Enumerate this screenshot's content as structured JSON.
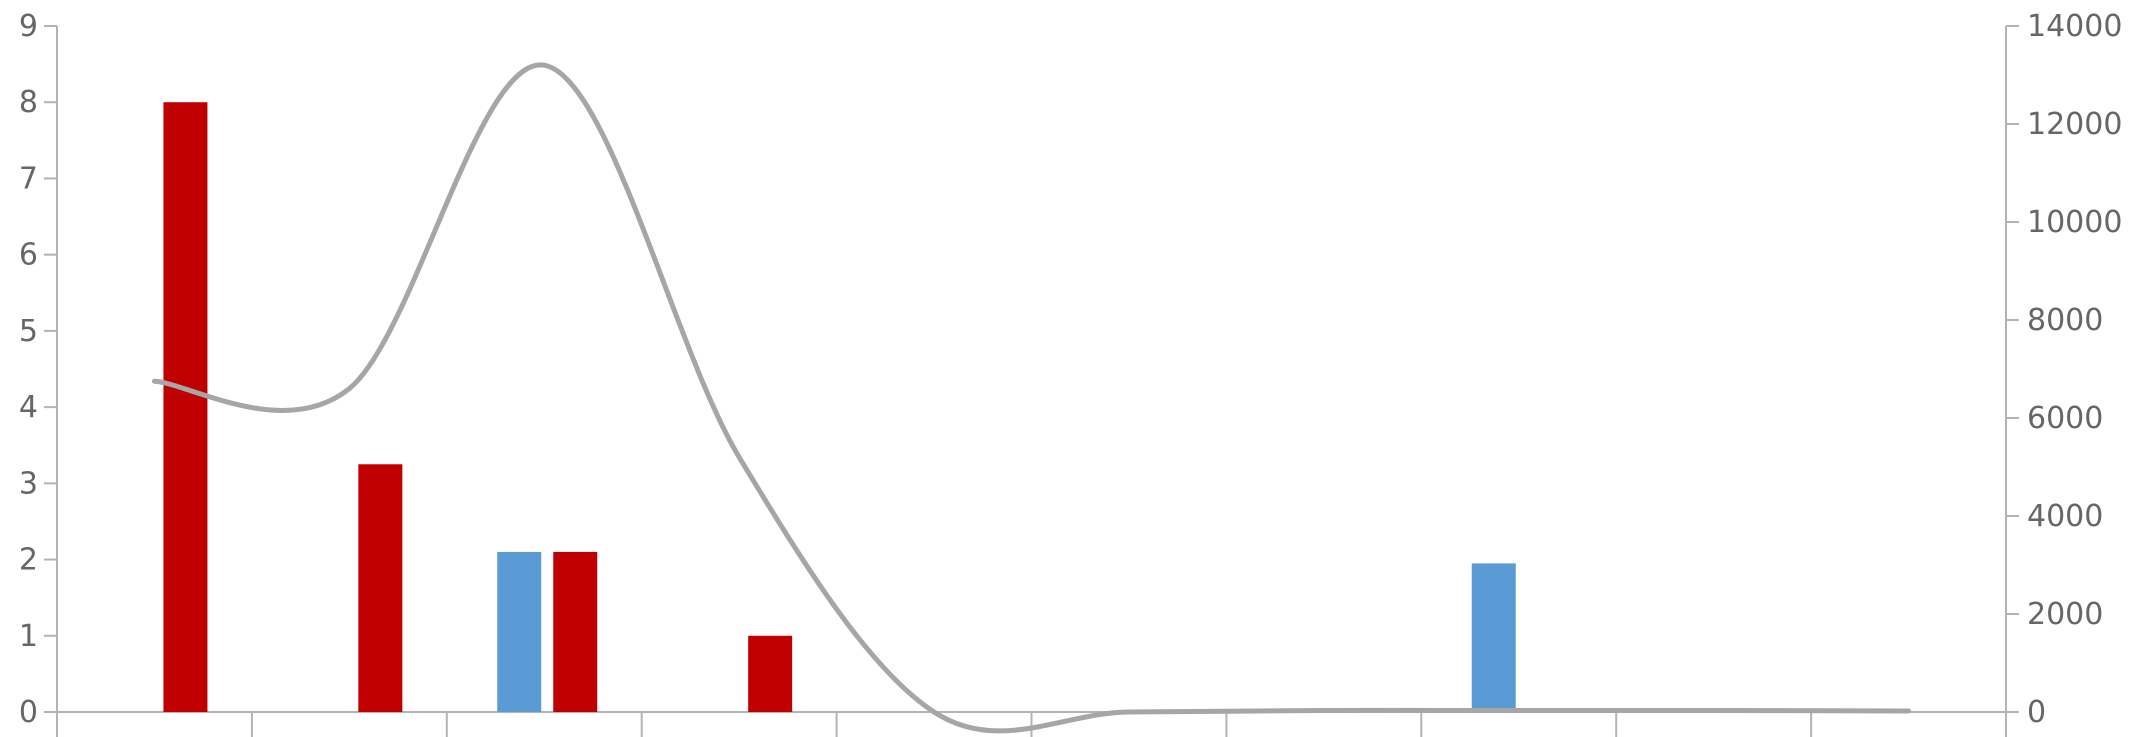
{
  "chart_data": {
    "type": "bar",
    "title": "",
    "xlabel": "",
    "ylabel": "",
    "y2label": "",
    "x_category_count": 10,
    "left_axis": {
      "ylim": [
        0,
        9
      ],
      "ticks": [
        "0",
        "1",
        "2",
        "3",
        "4",
        "5",
        "6",
        "7",
        "8",
        "9"
      ]
    },
    "right_axis": {
      "ylim": [
        0,
        14000
      ],
      "ticks": [
        "0",
        "2000",
        "4000",
        "6000",
        "8000",
        "10000",
        "12000",
        "14000"
      ]
    },
    "series": [
      {
        "kind": "bar",
        "axis": "left",
        "color": "#5b9bd5",
        "values": [
          null,
          null,
          2.1,
          null,
          null,
          null,
          null,
          1.95,
          null,
          null
        ]
      },
      {
        "kind": "bar",
        "axis": "left",
        "color": "#c00000",
        "values": [
          8.0,
          3.25,
          2.1,
          1.0,
          null,
          null,
          null,
          null,
          null,
          null
        ]
      },
      {
        "kind": "line",
        "axis": "right",
        "color": "#a6a6a6",
        "smooth": true,
        "points": [
          {
            "x": 0.0,
            "y": 6750
          },
          {
            "x": 1.0,
            "y": 6600
          },
          {
            "x": 2.0,
            "y": 13200
          },
          {
            "x": 3.0,
            "y": 5200
          },
          {
            "x": 4.0,
            "y": 0
          },
          {
            "x": 5.0,
            "y": 0
          },
          {
            "x": 6.0,
            "y": 30
          },
          {
            "x": 7.0,
            "y": 30
          },
          {
            "x": 8.0,
            "y": 30
          },
          {
            "x": 9.0,
            "y": 20
          }
        ]
      }
    ],
    "grid": false,
    "legend": "none"
  }
}
